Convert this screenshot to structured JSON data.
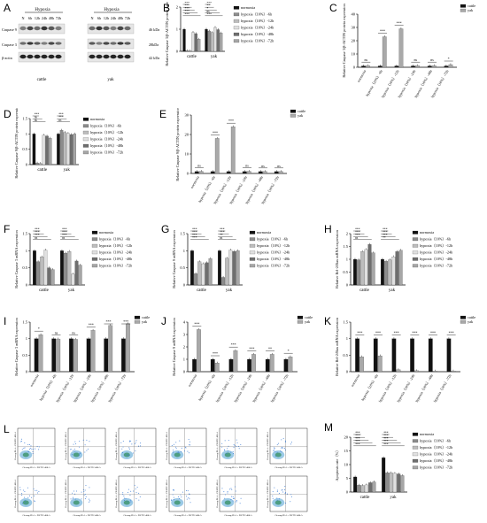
{
  "panels": {
    "A": {
      "letter": "A",
      "hypoxia_label": "Hypoxia",
      "lanes": [
        "N",
        "6h",
        "12h",
        "24h",
        "48h",
        "72h"
      ],
      "rows": [
        {
          "name": "Caspase 9",
          "kda": "46 kDa"
        },
        {
          "name": "Caspase 3",
          "kda": "28kDa"
        },
        {
          "name": "β-actin",
          "kda": "42 kDa"
        }
      ],
      "groups": [
        "cattle",
        "yak"
      ]
    },
    "B": {
      "letter": "B"
    },
    "C": {
      "letter": "C"
    },
    "D": {
      "letter": "D"
    },
    "E": {
      "letter": "E"
    },
    "F": {
      "letter": "F"
    },
    "G": {
      "letter": "G"
    },
    "H": {
      "letter": "H"
    },
    "I": {
      "letter": "I"
    },
    "J": {
      "letter": "J"
    },
    "K": {
      "letter": "K"
    },
    "L": {
      "letter": "L"
    },
    "M": {
      "letter": "M"
    }
  },
  "legend_time": [
    "normoxia",
    "hypoxia（10%）-6h",
    "hypoxia（10%）-12h",
    "hypoxia（10%）-24h",
    "hypoxia（10%）-48h",
    "hypoxia（10%）-72h"
  ],
  "legend_species": [
    "cattle",
    "yak"
  ],
  "time_colors": [
    "#111111",
    "#8c8c8c",
    "#bdbdbd",
    "#e0e0e0",
    "#6e6e6e",
    "#a6a6a6"
  ],
  "species_colors": [
    "#111111",
    "#a9a9a9"
  ],
  "flow_axis": {
    "x": "Cleavag-PE-A :: PI/FITC-488-A",
    "y": "Cleavag-PE-A :: PE/FITC-488-A"
  },
  "chart_data": [
    {
      "id": "B",
      "type": "bar",
      "ylabel": "Relative Caspase 3/β-ACTIN protein expression",
      "categories": [
        "cattle",
        "yak"
      ],
      "ylim": [
        0,
        2
      ],
      "yticks": [
        0,
        1,
        2
      ],
      "series": [
        {
          "name": "normoxia",
          "values": [
            1.0,
            1.0
          ]
        },
        {
          "name": "hypoxia（10%）-6h",
          "values": [
            0.03,
            0.92
          ]
        },
        {
          "name": "hypoxia（10%）-12h",
          "values": [
            0.02,
            0.85
          ]
        },
        {
          "name": "hypoxia（10%）-24h",
          "values": [
            0.86,
            1.08
          ]
        },
        {
          "name": "hypoxia（10%）-48h",
          "values": [
            0.8,
            0.98
          ]
        },
        {
          "name": "hypoxia（10%）-72h",
          "values": [
            0.55,
            0.83
          ]
        }
      ],
      "sig": [
        "***",
        "***",
        "***",
        "***",
        "***",
        "***",
        "**",
        "*",
        "ns",
        "***"
      ]
    },
    {
      "id": "C",
      "type": "bar",
      "ylabel": "Relative Caspase 3/β-ACTIN protein expression",
      "categories": [
        "normoxia",
        "hypoxia（10%）-6h",
        "hypoxia（10%）-12h",
        "hypoxia（10%）-24h",
        "hypoxia（10%）-48h",
        "hypoxia（10%）-72h"
      ],
      "ylim": [
        0,
        40
      ],
      "yticks": [
        0,
        10,
        20,
        30,
        40
      ],
      "series": [
        {
          "name": "cattle",
          "values": [
            1.0,
            1.0,
            1.0,
            1.0,
            1.0,
            1.0
          ]
        },
        {
          "name": "yak",
          "values": [
            1.2,
            23.0,
            29.0,
            1.2,
            1.2,
            2.0
          ]
        }
      ],
      "sig": [
        "ns",
        "***",
        "***",
        "ns",
        "ns",
        "*"
      ]
    },
    {
      "id": "D",
      "type": "bar",
      "ylabel": "Relative Caspase 9/β-ACTIN protein expression",
      "categories": [
        "cattle",
        "yak"
      ],
      "ylim": [
        0,
        1.5
      ],
      "yticks": [
        0,
        0.5,
        1.0,
        1.5
      ],
      "series": [
        {
          "name": "normoxia",
          "values": [
            1.0,
            1.0
          ]
        },
        {
          "name": "hypoxia（10%）-6h",
          "values": [
            0.05,
            1.12
          ]
        },
        {
          "name": "hypoxia（10%）-12h",
          "values": [
            0.04,
            1.05
          ]
        },
        {
          "name": "hypoxia（10%）-24h",
          "values": [
            0.96,
            1.02
          ]
        },
        {
          "name": "hypoxia（10%）-48h",
          "values": [
            0.93,
            0.98
          ]
        },
        {
          "name": "hypoxia（10%）-72h",
          "values": [
            0.86,
            1.0
          ]
        }
      ],
      "sig": [
        "***",
        "ns",
        "ns",
        "***",
        "***",
        "ns"
      ]
    },
    {
      "id": "E",
      "type": "bar",
      "ylabel": "Relative Caspase 9/β-ACTIN protein expression",
      "categories": [
        "normoxia",
        "hypoxia（10%）-6h",
        "hypoxia（10%）-12h",
        "hypoxia（10%）-24h",
        "hypoxia（10%）-48h",
        "hypoxia（10%）-72h"
      ],
      "ylim": [
        0,
        30
      ],
      "yticks": [
        0,
        10,
        20,
        30
      ],
      "series": [
        {
          "name": "cattle",
          "values": [
            1.0,
            1.0,
            1.0,
            1.0,
            1.0,
            1.0
          ]
        },
        {
          "name": "yak",
          "values": [
            1.1,
            18.0,
            24.0,
            1.1,
            1.0,
            1.0
          ]
        }
      ],
      "sig": [
        "ns",
        "***",
        "***",
        "ns",
        "ns",
        "ns"
      ]
    },
    {
      "id": "F",
      "type": "bar",
      "ylabel": "Relative Caspase 3 mRNA expression",
      "categories": [
        "cattle",
        "yak"
      ],
      "ylim": [
        0,
        1.5
      ],
      "yticks": [
        0,
        0.5,
        1.0,
        1.5
      ],
      "series": [
        {
          "name": "normoxia",
          "values": [
            1.0,
            1.0
          ]
        },
        {
          "name": "hypoxia（10%）-6h",
          "values": [
            0.68,
            0.93
          ]
        },
        {
          "name": "hypoxia（10%）-12h",
          "values": [
            0.82,
            0.98
          ]
        },
        {
          "name": "hypoxia（10%）-24h",
          "values": [
            1.02,
            0.32
          ]
        },
        {
          "name": "hypoxia（10%）-48h",
          "values": [
            0.5,
            0.7
          ]
        },
        {
          "name": "hypoxia（10%）-72h",
          "values": [
            0.45,
            0.58
          ]
        }
      ],
      "sig": [
        "***",
        "***",
        "***",
        "ns",
        "***",
        "***",
        "***",
        "ns"
      ]
    },
    {
      "id": "G",
      "type": "bar",
      "ylabel": "Relative Caspase 9 mRNA expression",
      "categories": [
        "cattle",
        "yak"
      ],
      "ylim": [
        0,
        1.5
      ],
      "yticks": [
        0,
        0.5,
        1.0,
        1.5
      ],
      "series": [
        {
          "name": "normoxia",
          "values": [
            1.0,
            1.0
          ]
        },
        {
          "name": "hypoxia（10%）-6h",
          "values": [
            0.33,
            0.22
          ]
        },
        {
          "name": "hypoxia（10%）-12h",
          "values": [
            0.68,
            0.78
          ]
        },
        {
          "name": "hypoxia（10%）-24h",
          "values": [
            0.62,
            1.02
          ]
        },
        {
          "name": "hypoxia（10%）-48h",
          "values": [
            0.65,
            0.98
          ]
        },
        {
          "name": "hypoxia（10%）-72h",
          "values": [
            0.77,
            1.0
          ]
        }
      ],
      "sig": [
        "***",
        "***",
        "***",
        "***",
        "***",
        "***",
        "**",
        "ns"
      ]
    },
    {
      "id": "H",
      "type": "bar",
      "ylabel": "Relative Bcl-2/Bax mRNA expression",
      "categories": [
        "cattle",
        "yak"
      ],
      "ylim": [
        0,
        2.0
      ],
      "yticks": [
        0,
        0.5,
        1.0,
        1.5,
        2.0
      ],
      "series": [
        {
          "name": "normoxia",
          "values": [
            1.0,
            1.0
          ]
        },
        {
          "name": "hypoxia（10%）-6h",
          "values": [
            0.98,
            0.92
          ]
        },
        {
          "name": "hypoxia（10%）-12h",
          "values": [
            1.3,
            0.98
          ]
        },
        {
          "name": "hypoxia（10%）-24h",
          "values": [
            1.38,
            1.1
          ]
        },
        {
          "name": "hypoxia（10%）-48h",
          "values": [
            1.58,
            1.3
          ]
        },
        {
          "name": "hypoxia（10%）-72h",
          "values": [
            1.25,
            1.35
          ]
        }
      ],
      "sig": [
        "***",
        "***",
        "***",
        "ns",
        "***",
        "***",
        "***",
        "**"
      ]
    },
    {
      "id": "I",
      "type": "bar",
      "ylabel": "Relative Caspase 3 mRNA expression",
      "categories": [
        "normoxia",
        "hypoxia（10%）-6h",
        "hypoxia（10%）-12h",
        "hypoxia（10%）-24h",
        "hypoxia（10%）-48h",
        "hypoxia（10%）-72h"
      ],
      "ylim": [
        0,
        1.5
      ],
      "yticks": [
        0,
        0.5,
        1.0,
        1.5
      ],
      "series": [
        {
          "name": "cattle",
          "values": [
            1.0,
            1.0,
            1.0,
            1.0,
            1.0,
            1.0
          ]
        },
        {
          "name": "yak",
          "values": [
            1.12,
            0.99,
            0.98,
            1.25,
            1.4,
            1.45
          ]
        }
      ],
      "sig": [
        "*",
        "ns",
        "ns",
        "***",
        "***",
        "***"
      ]
    },
    {
      "id": "J",
      "type": "bar",
      "ylabel": "Relative Caspase 9 mRNA expression",
      "categories": [
        "normoxia",
        "hypoxia（10%）-6h",
        "hypoxia（10%）-12h",
        "hypoxia（10%）-24h",
        "hypoxia（10%）-48h",
        "hypoxia（10%）-72h"
      ],
      "ylim": [
        0,
        4
      ],
      "yticks": [
        0,
        1,
        2,
        3,
        4
      ],
      "series": [
        {
          "name": "cattle",
          "values": [
            1.0,
            1.0,
            1.0,
            1.0,
            1.0,
            1.0
          ]
        },
        {
          "name": "yak",
          "values": [
            3.4,
            0.7,
            1.7,
            1.4,
            1.4,
            1.2
          ]
        }
      ],
      "sig": [
        "***",
        "***",
        "***",
        "***",
        "**",
        "*"
      ]
    },
    {
      "id": "K",
      "type": "bar",
      "ylabel": "Relative Bcl-2/Bax mRNA expression",
      "categories": [
        "normoxia",
        "hypoxia（10%）-6h",
        "hypoxia（10%）-12h",
        "hypoxia（10%）-24h",
        "hypoxia（10%）-48h",
        "hypoxia（10%）-72h"
      ],
      "ylim": [
        0,
        1.5
      ],
      "yticks": [
        0,
        0.5,
        1.0,
        1.5
      ],
      "series": [
        {
          "name": "cattle",
          "values": [
            1.0,
            1.0,
            1.0,
            1.0,
            1.0,
            1.0
          ]
        },
        {
          "name": "yak",
          "values": [
            0.45,
            0.48,
            0.06,
            0.03,
            0.02,
            0.02
          ]
        }
      ],
      "sig": [
        "***",
        "***",
        "***",
        "***",
        "***",
        "***"
      ]
    },
    {
      "id": "M",
      "type": "bar",
      "ylabel": "Apoptosis rate（%）",
      "categories": [
        "cattle",
        "yak"
      ],
      "ylim": [
        0,
        20
      ],
      "yticks": [
        0,
        5,
        10,
        15,
        20
      ],
      "series": [
        {
          "name": "normoxia",
          "values": [
            5.5,
            12.5
          ]
        },
        {
          "name": "hypoxia（10%）-6h",
          "values": [
            2.5,
            7.0
          ]
        },
        {
          "name": "hypoxia（10%）-12h",
          "values": [
            2.4,
            7.0
          ]
        },
        {
          "name": "hypoxia（10%）-24h",
          "values": [
            2.6,
            6.8
          ]
        },
        {
          "name": "hypoxia（10%）-48h",
          "values": [
            3.4,
            6.6
          ]
        },
        {
          "name": "hypoxia（10%）-72h",
          "values": [
            3.7,
            6.0
          ]
        }
      ],
      "sig": [
        "***",
        "***",
        "***",
        "***",
        "***",
        "***",
        "***",
        "***",
        "***",
        "***"
      ]
    }
  ]
}
